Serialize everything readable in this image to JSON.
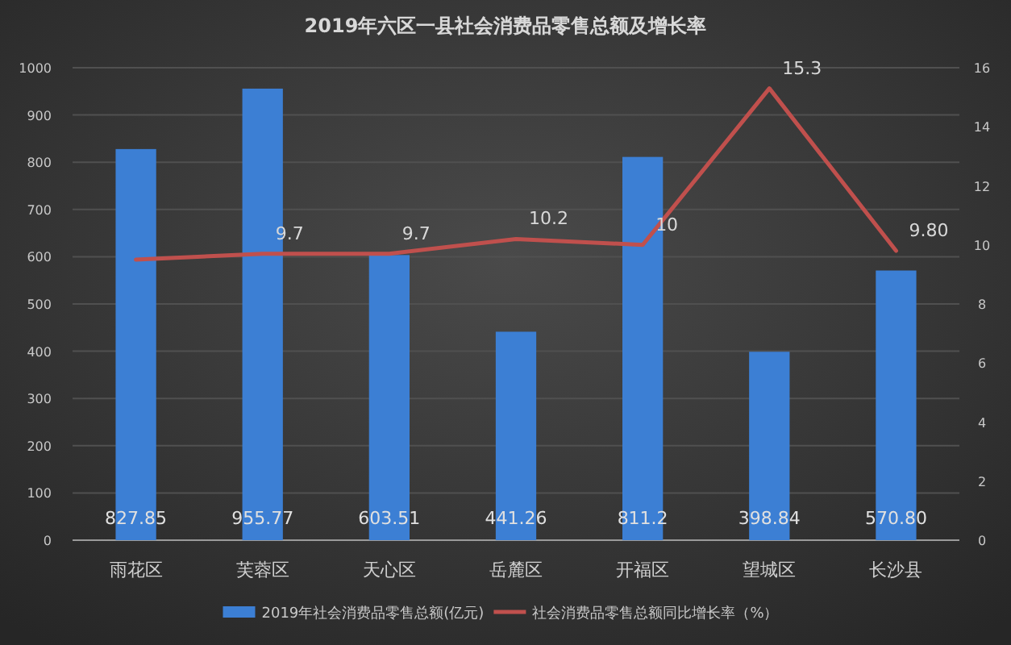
{
  "chart_data": {
    "type": "bar",
    "title": "2019年六区一县社会消费品零售总额及增长率",
    "categories": [
      "雨花区",
      "芙蓉区",
      "天心区",
      "岳麓区",
      "开福区",
      "望城区",
      "长沙县"
    ],
    "series": [
      {
        "name": "2019年社会消费品零售总额(亿元)",
        "color": "#3c7fd4",
        "values": [
          827.85,
          955.77,
          603.51,
          441.26,
          811.2,
          398.84,
          570.8
        ],
        "value_labels": [
          "827.85",
          "955.77",
          "603.51",
          "441.26",
          "811.2",
          "398.84",
          "570.80"
        ]
      },
      {
        "name": "社会消费品零售总额同比增长率（%）",
        "type": "line",
        "axis": "y2",
        "color": "#c0504d",
        "values": [
          9.5,
          9.7,
          9.7,
          10.2,
          10,
          15.3,
          9.8
        ],
        "value_labels": [
          null,
          "9.7",
          "9.7",
          "10.2",
          "10",
          "15.3",
          "9.80"
        ]
      }
    ],
    "ylim": [
      0,
      1000
    ],
    "yticks": [
      0,
      100,
      200,
      300,
      400,
      500,
      600,
      700,
      800,
      900,
      1000
    ],
    "y2lim": [
      0,
      16
    ],
    "y2ticks": [
      0,
      2,
      4,
      6,
      8,
      10,
      12,
      14,
      16
    ],
    "grid": "y",
    "legend": "bottom",
    "marker": "none",
    "line_style": "solid"
  }
}
